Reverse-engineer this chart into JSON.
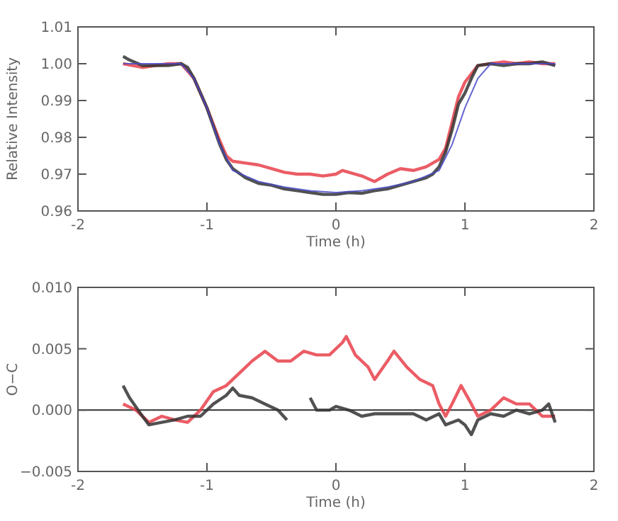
{
  "chart_data": [
    {
      "type": "line",
      "xlabel": "Time (h)",
      "ylabel": "Relative Intensity",
      "xlim": [
        -2,
        2
      ],
      "xticks": [
        -2,
        -1,
        0,
        1,
        2
      ],
      "ylim": [
        0.96,
        1.01
      ],
      "yticks": [
        0.96,
        0.97,
        0.98,
        0.99,
        {
          "value": 1.0,
          "label": "1.00"
        },
        1.01
      ],
      "grid": false,
      "marker": "none",
      "line_style": "solid",
      "series": [
        {
          "color": "#e8404a",
          "x": [
            -1.65,
            -1.5,
            -1.4,
            -1.3,
            -1.2,
            -1.1,
            -1.0,
            -0.9,
            -0.85,
            -0.8,
            -0.7,
            -0.6,
            -0.5,
            -0.4,
            -0.3,
            -0.2,
            -0.1,
            0,
            0.05,
            0.1,
            0.2,
            0.3,
            0.4,
            0.5,
            0.6,
            0.7,
            0.8,
            0.85,
            0.9,
            0.95,
            1.0,
            1.1,
            1.2,
            1.3,
            1.4,
            1.5,
            1.6,
            1.7
          ],
          "values": [
            1.0,
            0.999,
            0.9995,
            1.0,
            1.0,
            0.996,
            0.988,
            0.979,
            0.975,
            0.9735,
            0.973,
            0.9725,
            0.9715,
            0.9705,
            0.97,
            0.97,
            0.9695,
            0.97,
            0.971,
            0.9705,
            0.9695,
            0.968,
            0.97,
            0.9715,
            0.971,
            0.972,
            0.974,
            0.977,
            0.984,
            0.991,
            0.995,
            0.9995,
            1.0,
            1.0005,
            1.0,
            1.0005,
            1.0,
            1.0
          ]
        },
        {
          "color": "#333333",
          "x": [
            -1.65,
            -1.6,
            -1.5,
            -1.4,
            -1.3,
            -1.2,
            -1.15,
            -1.1,
            -1.05,
            -1.0,
            -0.95,
            -0.9,
            -0.85,
            -0.8,
            -0.7,
            -0.6,
            -0.5,
            -0.4,
            -0.3,
            -0.2,
            -0.1,
            0,
            0.1,
            0.2,
            0.3,
            0.4,
            0.5,
            0.6,
            0.7,
            0.75,
            0.8,
            0.85,
            0.9,
            0.95,
            1.0,
            1.05,
            1.1,
            1.2,
            1.3,
            1.4,
            1.5,
            1.6,
            1.7
          ],
          "values": [
            1.002,
            1.001,
            0.9995,
            0.9995,
            0.9995,
            1.0,
            0.999,
            0.996,
            0.992,
            0.988,
            0.983,
            0.978,
            0.974,
            0.9715,
            0.969,
            0.9675,
            0.967,
            0.966,
            0.9655,
            0.965,
            0.9645,
            0.9645,
            0.965,
            0.9648,
            0.9655,
            0.966,
            0.967,
            0.968,
            0.969,
            0.97,
            0.972,
            0.976,
            0.982,
            0.989,
            0.992,
            0.996,
            0.9995,
            1.0,
            0.9995,
            1.0,
            1.0,
            1.0005,
            0.9995
          ]
        },
        {
          "color": "#4a4ac8",
          "x": [
            -1.65,
            -1.2,
            -1.1,
            -1.0,
            -0.9,
            -0.8,
            -0.6,
            -0.4,
            -0.2,
            0,
            0.2,
            0.4,
            0.6,
            0.8,
            0.9,
            1.0,
            1.1,
            1.2,
            1.7
          ],
          "values": [
            1.0,
            1.0,
            0.996,
            0.988,
            0.978,
            0.971,
            0.968,
            0.9665,
            0.9655,
            0.965,
            0.9655,
            0.9665,
            0.968,
            0.971,
            0.978,
            0.988,
            0.996,
            1.0,
            1.0
          ]
        }
      ]
    },
    {
      "type": "line",
      "xlabel": "Time (h)",
      "ylabel": "O−C",
      "xlim": [
        -2,
        2
      ],
      "xticks": [
        -2,
        -1,
        0,
        1,
        2
      ],
      "ylim": [
        -0.005,
        0.01
      ],
      "yticks": [
        {
          "value": -0.005,
          "label": "−0.005"
        },
        {
          "value": 0,
          "label": "0.000"
        },
        {
          "value": 0.005,
          "label": "0.005"
        },
        {
          "value": 0.01,
          "label": "0.010"
        }
      ],
      "grid": false,
      "marker": "none",
      "line_style": "solid",
      "ref_lines": [
        {
          "axis": "y",
          "value": 0,
          "color": "#333333"
        }
      ],
      "series": [
        {
          "color": "#e8404a",
          "x": [
            -1.65,
            -1.55,
            -1.45,
            -1.35,
            -1.25,
            -1.15,
            -1.05,
            -0.95,
            -0.85,
            -0.75,
            -0.65,
            -0.55,
            -0.45,
            -0.35,
            -0.25,
            -0.15,
            -0.05,
            0.05,
            0.08,
            0.15,
            0.25,
            0.3,
            0.4,
            0.45,
            0.55,
            0.65,
            0.75,
            0.8,
            0.85,
            0.9,
            0.97,
            1.05,
            1.1,
            1.2,
            1.3,
            1.4,
            1.5,
            1.6,
            1.7
          ],
          "values": [
            0.0005,
            0.0,
            -0.001,
            -0.0005,
            -0.0008,
            -0.001,
            0.0,
            0.0015,
            0.002,
            0.003,
            0.004,
            0.0048,
            0.004,
            0.004,
            0.0048,
            0.0045,
            0.0045,
            0.0055,
            0.006,
            0.0045,
            0.0035,
            0.0025,
            0.004,
            0.0048,
            0.0035,
            0.0025,
            0.002,
            0.0005,
            -0.0005,
            0.0005,
            0.002,
            0.0005,
            -0.0005,
            0.0,
            0.001,
            0.0005,
            0.0005,
            -0.0005,
            -0.0005
          ]
        },
        {
          "color": "#333333",
          "x": [
            -1.65,
            -1.6,
            -1.5,
            -1.45,
            -1.35,
            -1.25,
            -1.15,
            -1.05,
            -0.95,
            -0.85,
            -0.8,
            -0.75,
            -0.65,
            -0.55,
            -0.45,
            -0.38,
            -0.3,
            -0.2,
            -0.15,
            -0.05,
            0.0,
            0.1,
            0.2,
            0.3,
            0.4,
            0.5,
            0.6,
            0.7,
            0.8,
            0.85,
            0.95,
            1.0,
            1.05,
            1.1,
            1.2,
            1.3,
            1.4,
            1.5,
            1.6,
            1.65,
            1.7
          ],
          "values": [
            0.002,
            0.001,
            -0.0005,
            -0.0012,
            -0.001,
            -0.0008,
            -0.0005,
            -0.0005,
            0.0005,
            0.0012,
            0.0018,
            0.0012,
            0.001,
            0.0005,
            0.0,
            -0.0008,
            null,
            0.001,
            0.0,
            0.0,
            0.0003,
            0.0,
            -0.0005,
            -0.0003,
            -0.0003,
            -0.0003,
            -0.0003,
            -0.0008,
            -0.0003,
            -0.0012,
            -0.0008,
            -0.0012,
            -0.002,
            -0.0008,
            -0.0003,
            -0.0005,
            0.0,
            -0.0003,
            0.0,
            0.0005,
            -0.001
          ]
        }
      ]
    }
  ]
}
